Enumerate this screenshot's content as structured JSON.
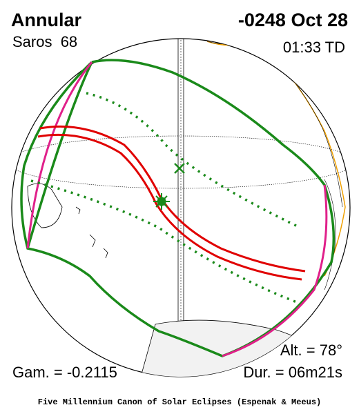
{
  "header": {
    "title": "Annular",
    "saros": "Saros  68",
    "date": "-0248 Oct 28",
    "time": "01:33 TD"
  },
  "footer_info": {
    "altitude": "Alt. = 78°",
    "gamma": "Gam. = -0.2115",
    "duration": "Dur. = 06m21s"
  },
  "credit": "Five Millennium Canon of Solar Eclipses (Espenak & Meeus)"
}
